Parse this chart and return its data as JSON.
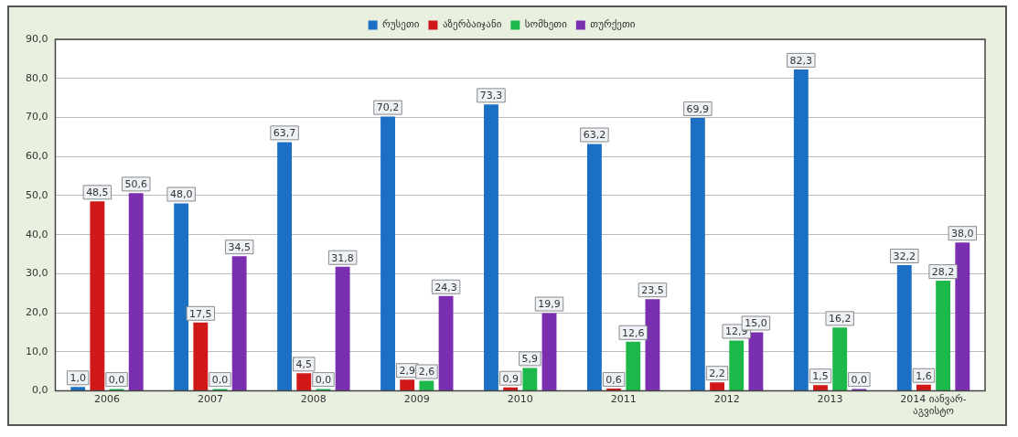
{
  "chart_data": {
    "type": "bar",
    "categories": [
      "2006",
      "2007",
      "2008",
      "2009",
      "2010",
      "2011",
      "2012",
      "2013",
      "2014 იანვარ-აგვისტო"
    ],
    "series": [
      {
        "name": "რუსეთი",
        "color": "#1b6fc4",
        "values": [
          1.0,
          48.0,
          63.7,
          70.2,
          73.3,
          63.2,
          69.9,
          82.3,
          32.2
        ],
        "value_labels": [
          "1,0",
          "48,0",
          "63,7",
          "70,2",
          "73,3",
          "63,2",
          "69,9",
          "82,3",
          "32,2"
        ]
      },
      {
        "name": "აზერბაიჯანი",
        "color": "#d01818",
        "values": [
          48.5,
          17.5,
          4.5,
          2.9,
          0.9,
          0.6,
          2.2,
          1.5,
          1.6
        ],
        "value_labels": [
          "48,5",
          "17,5",
          "4,5",
          "2,9",
          "0,9",
          "0,6",
          "2,2",
          "1,5",
          "1,6"
        ]
      },
      {
        "name": "სომხეთი",
        "color": "#1cb84a",
        "values": [
          0.0,
          0.0,
          0.0,
          2.6,
          5.9,
          12.6,
          12.9,
          16.2,
          28.2
        ],
        "value_labels": [
          "0,0",
          "0,0",
          "0,0",
          "2,6",
          "5,9",
          "12,6",
          "12,9",
          "16,2",
          "28,2"
        ]
      },
      {
        "name": "თურქეთი",
        "color": "#7a2fb0",
        "values": [
          50.6,
          34.5,
          31.8,
          24.3,
          19.9,
          23.5,
          15.0,
          0.0,
          38.0
        ],
        "value_labels": [
          "50,6",
          "34,5",
          "31,8",
          "24,3",
          "19,9",
          "23,5",
          "15,0",
          "0,0",
          "38,0"
        ]
      }
    ],
    "ylim": [
      0,
      90
    ],
    "yticks": [
      {
        "value": 0,
        "label": "0,0"
      },
      {
        "value": 10,
        "label": "10,0"
      },
      {
        "value": 20,
        "label": "20,0"
      },
      {
        "value": 30,
        "label": "30,0"
      },
      {
        "value": 40,
        "label": "40,0"
      },
      {
        "value": 50,
        "label": "50,0"
      },
      {
        "value": 60,
        "label": "60,0"
      },
      {
        "value": 70,
        "label": "70,0"
      },
      {
        "value": 80,
        "label": "80,0"
      },
      {
        "value": 90,
        "label": "90,0"
      }
    ],
    "grid": "y",
    "legend": "top"
  }
}
